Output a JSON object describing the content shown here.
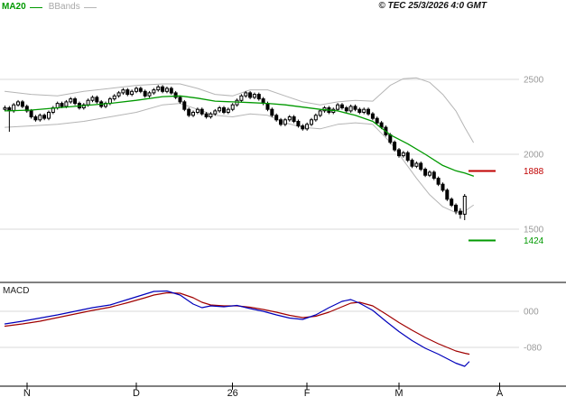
{
  "header": {
    "ma_label": "MA20",
    "bbands_label": "BBands",
    "copyright": "© TEC 25/3/2026 4:0 GMT"
  },
  "macd_header": {
    "label": "MACD"
  },
  "price_axis": {
    "gridlines": [
      2500,
      2000,
      1500
    ],
    "labels": [
      "2500",
      "2000",
      "1500"
    ]
  },
  "macd_axis": {
    "labels": [
      {
        "value": 0,
        "label": "000"
      },
      {
        "value": -80,
        "label": "-080"
      }
    ]
  },
  "levels": [
    {
      "value": 1888,
      "label": "1888",
      "color": "#c00000",
      "name": "resistance"
    },
    {
      "value": 1424,
      "label": "1424",
      "color": "#009900",
      "name": "support"
    }
  ],
  "x_axis": {
    "ticks": [
      {
        "label": "N",
        "index": 5
      },
      {
        "label": "D",
        "index": 30
      },
      {
        "label": "26",
        "index": 52
      },
      {
        "label": "F",
        "index": 69
      },
      {
        "label": "M",
        "index": 90
      },
      {
        "label": "A",
        "index": 113
      }
    ]
  },
  "colors": {
    "ma20": "#009900",
    "bbands": "#b5b5b5",
    "grid": "#d8d8d8",
    "axis_text": "#9a9a9a",
    "candle": "#000000",
    "candle_up_fill": "#ffffff",
    "candle_down_fill": "#000000",
    "macd_line": "#0000bb",
    "signal_line": "#a00000",
    "divider": "#000000",
    "month_text": "#111111"
  },
  "chart_data": {
    "type": "candlestick",
    "title": "",
    "legend": [
      "MA20",
      "BBands",
      "MACD"
    ],
    "x_tick_labels": [
      "N",
      "D",
      "26",
      "F",
      "M",
      "A"
    ],
    "price_panel": {
      "ylim": [
        1380,
        2560
      ],
      "y_gridlines": [
        1500,
        2000,
        2500
      ],
      "levels": [
        {
          "name": "resistance",
          "value": 1888
        },
        {
          "name": "support",
          "value": 1424
        }
      ],
      "candles_ohlc": [
        [
          2300,
          2325,
          2288,
          2310
        ],
        [
          2310,
          2322,
          2150,
          2290
        ],
        [
          2290,
          2342,
          2278,
          2330
        ],
        [
          2330,
          2362,
          2318,
          2350
        ],
        [
          2350,
          2362,
          2308,
          2320
        ],
        [
          2320,
          2332,
          2278,
          2290
        ],
        [
          2290,
          2302,
          2238,
          2250
        ],
        [
          2250,
          2262,
          2218,
          2230
        ],
        [
          2230,
          2272,
          2218,
          2260
        ],
        [
          2260,
          2272,
          2228,
          2240
        ],
        [
          2240,
          2292,
          2228,
          2280
        ],
        [
          2280,
          2322,
          2268,
          2310
        ],
        [
          2310,
          2352,
          2298,
          2340
        ],
        [
          2340,
          2352,
          2308,
          2320
        ],
        [
          2320,
          2362,
          2308,
          2350
        ],
        [
          2350,
          2382,
          2338,
          2370
        ],
        [
          2370,
          2382,
          2328,
          2340
        ],
        [
          2340,
          2352,
          2298,
          2310
        ],
        [
          2310,
          2342,
          2298,
          2330
        ],
        [
          2330,
          2372,
          2318,
          2360
        ],
        [
          2360,
          2392,
          2348,
          2380
        ],
        [
          2380,
          2392,
          2338,
          2350
        ],
        [
          2350,
          2362,
          2308,
          2320
        ],
        [
          2320,
          2352,
          2308,
          2340
        ],
        [
          2340,
          2382,
          2328,
          2370
        ],
        [
          2370,
          2402,
          2358,
          2390
        ],
        [
          2390,
          2422,
          2378,
          2410
        ],
        [
          2410,
          2442,
          2398,
          2430
        ],
        [
          2430,
          2442,
          2388,
          2400
        ],
        [
          2400,
          2432,
          2388,
          2420
        ],
        [
          2420,
          2452,
          2408,
          2440
        ],
        [
          2440,
          2452,
          2408,
          2420
        ],
        [
          2420,
          2432,
          2378,
          2390
        ],
        [
          2390,
          2422,
          2378,
          2410
        ],
        [
          2410,
          2442,
          2398,
          2430
        ],
        [
          2430,
          2462,
          2418,
          2450
        ],
        [
          2450,
          2462,
          2408,
          2420
        ],
        [
          2420,
          2452,
          2408,
          2440
        ],
        [
          2440,
          2452,
          2398,
          2410
        ],
        [
          2410,
          2422,
          2368,
          2380
        ],
        [
          2380,
          2392,
          2338,
          2350
        ],
        [
          2350,
          2362,
          2288,
          2300
        ],
        [
          2300,
          2312,
          2248,
          2260
        ],
        [
          2260,
          2292,
          2248,
          2280
        ],
        [
          2280,
          2312,
          2268,
          2300
        ],
        [
          2300,
          2312,
          2258,
          2270
        ],
        [
          2270,
          2282,
          2238,
          2250
        ],
        [
          2250,
          2282,
          2238,
          2270
        ],
        [
          2270,
          2302,
          2258,
          2290
        ],
        [
          2290,
          2322,
          2278,
          2310
        ],
        [
          2310,
          2322,
          2268,
          2280
        ],
        [
          2280,
          2312,
          2268,
          2300
        ],
        [
          2300,
          2342,
          2288,
          2330
        ],
        [
          2330,
          2372,
          2318,
          2360
        ],
        [
          2360,
          2402,
          2348,
          2390
        ],
        [
          2390,
          2422,
          2378,
          2410
        ],
        [
          2410,
          2422,
          2368,
          2380
        ],
        [
          2380,
          2412,
          2368,
          2400
        ],
        [
          2400,
          2412,
          2358,
          2370
        ],
        [
          2370,
          2382,
          2328,
          2340
        ],
        [
          2340,
          2352,
          2288,
          2300
        ],
        [
          2300,
          2312,
          2248,
          2260
        ],
        [
          2260,
          2272,
          2218,
          2230
        ],
        [
          2230,
          2242,
          2188,
          2200
        ],
        [
          2200,
          2242,
          2188,
          2230
        ],
        [
          2230,
          2262,
          2218,
          2250
        ],
        [
          2250,
          2262,
          2208,
          2220
        ],
        [
          2220,
          2232,
          2178,
          2190
        ],
        [
          2190,
          2202,
          2158,
          2170
        ],
        [
          2170,
          2212,
          2158,
          2200
        ],
        [
          2200,
          2242,
          2188,
          2230
        ],
        [
          2230,
          2272,
          2218,
          2260
        ],
        [
          2260,
          2302,
          2248,
          2290
        ],
        [
          2290,
          2322,
          2278,
          2310
        ],
        [
          2310,
          2322,
          2268,
          2280
        ],
        [
          2280,
          2312,
          2268,
          2300
        ],
        [
          2300,
          2342,
          2288,
          2330
        ],
        [
          2330,
          2342,
          2298,
          2310
        ],
        [
          2310,
          2322,
          2278,
          2290
        ],
        [
          2290,
          2332,
          2278,
          2320
        ],
        [
          2320,
          2332,
          2288,
          2300
        ],
        [
          2300,
          2312,
          2268,
          2280
        ],
        [
          2280,
          2312,
          2268,
          2300
        ],
        [
          2300,
          2312,
          2258,
          2270
        ],
        [
          2270,
          2282,
          2228,
          2240
        ],
        [
          2240,
          2252,
          2198,
          2210
        ],
        [
          2210,
          2222,
          2168,
          2180
        ],
        [
          2180,
          2192,
          2118,
          2130
        ],
        [
          2130,
          2142,
          2068,
          2080
        ],
        [
          2080,
          2092,
          2018,
          2030
        ],
        [
          2030,
          2042,
          1978,
          1990
        ],
        [
          1990,
          2022,
          1978,
          2010
        ],
        [
          2010,
          2022,
          1948,
          1960
        ],
        [
          1960,
          1972,
          1908,
          1920
        ],
        [
          1920,
          1952,
          1908,
          1940
        ],
        [
          1940,
          1952,
          1888,
          1900
        ],
        [
          1900,
          1912,
          1848,
          1860
        ],
        [
          1860,
          1892,
          1848,
          1880
        ],
        [
          1880,
          1892,
          1828,
          1840
        ],
        [
          1840,
          1852,
          1788,
          1800
        ],
        [
          1800,
          1812,
          1748,
          1760
        ],
        [
          1760,
          1772,
          1688,
          1700
        ],
        [
          1700,
          1712,
          1648,
          1660
        ],
        [
          1660,
          1672,
          1600,
          1620
        ],
        [
          1620,
          1640,
          1570,
          1600
        ],
        [
          1600,
          1735,
          1560,
          1720
        ]
      ],
      "ma20_points": [
        [
          0,
          2290
        ],
        [
          6,
          2295
        ],
        [
          12,
          2310
        ],
        [
          18,
          2325
        ],
        [
          24,
          2340
        ],
        [
          30,
          2360
        ],
        [
          36,
          2385
        ],
        [
          40,
          2390
        ],
        [
          44,
          2375
        ],
        [
          48,
          2355
        ],
        [
          52,
          2350
        ],
        [
          56,
          2345
        ],
        [
          60,
          2340
        ],
        [
          64,
          2330
        ],
        [
          68,
          2315
        ],
        [
          72,
          2300
        ],
        [
          76,
          2290
        ],
        [
          80,
          2260
        ],
        [
          84,
          2220
        ],
        [
          88,
          2130
        ],
        [
          92,
          2070
        ],
        [
          96,
          2000
        ],
        [
          100,
          1925
        ],
        [
          103,
          1890
        ],
        [
          105,
          1875
        ],
        [
          107,
          1855
        ]
      ],
      "bollinger_upper_points": [
        [
          0,
          2420
        ],
        [
          6,
          2400
        ],
        [
          12,
          2390
        ],
        [
          18,
          2420
        ],
        [
          24,
          2440
        ],
        [
          30,
          2460
        ],
        [
          36,
          2470
        ],
        [
          40,
          2470
        ],
        [
          44,
          2440
        ],
        [
          48,
          2400
        ],
        [
          52,
          2390
        ],
        [
          56,
          2430
        ],
        [
          60,
          2430
        ],
        [
          64,
          2390
        ],
        [
          68,
          2350
        ],
        [
          72,
          2330
        ],
        [
          76,
          2350
        ],
        [
          80,
          2360
        ],
        [
          84,
          2355
        ],
        [
          88,
          2460
        ],
        [
          91,
          2505
        ],
        [
          94,
          2510
        ],
        [
          97,
          2480
        ],
        [
          100,
          2400
        ],
        [
          103,
          2290
        ],
        [
          105,
          2180
        ],
        [
          107,
          2080
        ]
      ],
      "bollinger_lower_points": [
        [
          0,
          2180
        ],
        [
          6,
          2190
        ],
        [
          12,
          2200
        ],
        [
          18,
          2220
        ],
        [
          24,
          2250
        ],
        [
          30,
          2280
        ],
        [
          36,
          2330
        ],
        [
          40,
          2340
        ],
        [
          44,
          2300
        ],
        [
          48,
          2260
        ],
        [
          52,
          2250
        ],
        [
          56,
          2270
        ],
        [
          60,
          2260
        ],
        [
          64,
          2210
        ],
        [
          68,
          2180
        ],
        [
          72,
          2170
        ],
        [
          76,
          2200
        ],
        [
          80,
          2210
        ],
        [
          84,
          2200
        ],
        [
          88,
          2080
        ],
        [
          91,
          1960
        ],
        [
          94,
          1840
        ],
        [
          97,
          1730
        ],
        [
          100,
          1650
        ],
        [
          103,
          1610
        ],
        [
          105,
          1620
        ],
        [
          107,
          1660
        ]
      ]
    },
    "macd_panel_data": {
      "y_gridlines": [
        0,
        -80
      ],
      "macd_points": [
        [
          0,
          -28
        ],
        [
          4,
          -22
        ],
        [
          8,
          -15
        ],
        [
          12,
          -8
        ],
        [
          16,
          0
        ],
        [
          20,
          8
        ],
        [
          24,
          14
        ],
        [
          28,
          26
        ],
        [
          32,
          38
        ],
        [
          34,
          44
        ],
        [
          37,
          45
        ],
        [
          40,
          36
        ],
        [
          43,
          16
        ],
        [
          45,
          8
        ],
        [
          47,
          12
        ],
        [
          50,
          10
        ],
        [
          53,
          13
        ],
        [
          56,
          6
        ],
        [
          59,
          0
        ],
        [
          62,
          -8
        ],
        [
          65,
          -15
        ],
        [
          68,
          -18
        ],
        [
          71,
          -8
        ],
        [
          74,
          8
        ],
        [
          77,
          22
        ],
        [
          79,
          26
        ],
        [
          81,
          18
        ],
        [
          84,
          2
        ],
        [
          87,
          -22
        ],
        [
          90,
          -45
        ],
        [
          93,
          -65
        ],
        [
          96,
          -82
        ],
        [
          99,
          -95
        ],
        [
          101,
          -105
        ],
        [
          103,
          -115
        ],
        [
          105,
          -122
        ],
        [
          106,
          -112
        ]
      ],
      "signal_points": [
        [
          0,
          -33
        ],
        [
          4,
          -28
        ],
        [
          8,
          -22
        ],
        [
          12,
          -14
        ],
        [
          16,
          -6
        ],
        [
          20,
          2
        ],
        [
          24,
          9
        ],
        [
          28,
          19
        ],
        [
          32,
          30
        ],
        [
          34,
          36
        ],
        [
          37,
          41
        ],
        [
          40,
          40
        ],
        [
          43,
          30
        ],
        [
          45,
          20
        ],
        [
          47,
          14
        ],
        [
          50,
          12
        ],
        [
          53,
          12
        ],
        [
          56,
          9
        ],
        [
          59,
          4
        ],
        [
          62,
          -2
        ],
        [
          65,
          -9
        ],
        [
          68,
          -14
        ],
        [
          71,
          -11
        ],
        [
          74,
          -2
        ],
        [
          77,
          10
        ],
        [
          79,
          18
        ],
        [
          81,
          20
        ],
        [
          84,
          12
        ],
        [
          87,
          -6
        ],
        [
          90,
          -25
        ],
        [
          93,
          -42
        ],
        [
          96,
          -58
        ],
        [
          99,
          -72
        ],
        [
          101,
          -80
        ],
        [
          103,
          -88
        ],
        [
          105,
          -93
        ],
        [
          106,
          -95
        ]
      ]
    }
  }
}
